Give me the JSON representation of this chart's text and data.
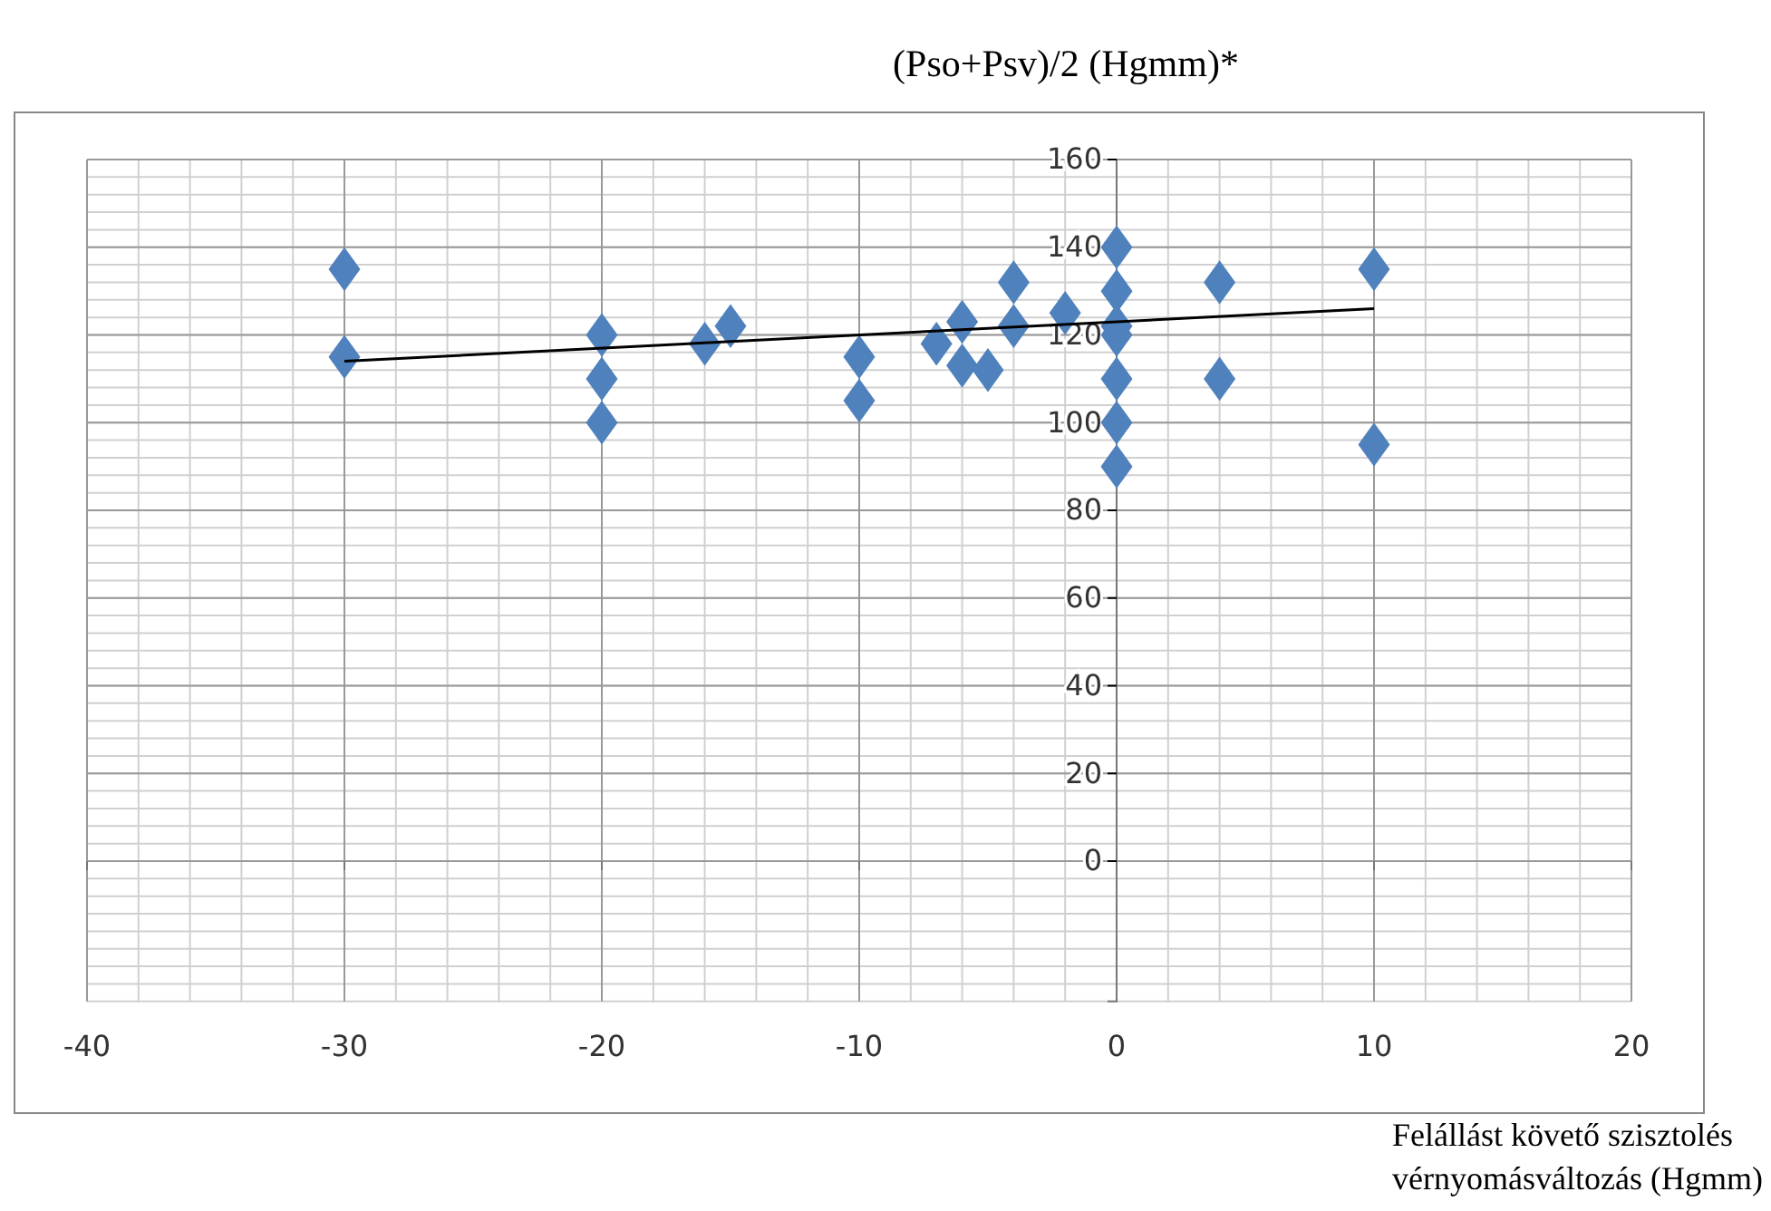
{
  "chart_data": {
    "type": "scatter",
    "ylabel": "(Pso+Psv)/2 (Hgmm)*",
    "xlabel": "Felállást követő szisztolés vérnyomásváltozás (Hgmm)",
    "xlim": [
      -40,
      20
    ],
    "ylim": [
      -32,
      160
    ],
    "xticks": [
      -40,
      -30,
      -20,
      -10,
      0,
      10,
      20
    ],
    "yticks": [
      0,
      20,
      40,
      60,
      80,
      100,
      120,
      140,
      160
    ],
    "grid": true,
    "marker": "diamond",
    "series": [
      {
        "color": "#4f81bd",
        "x": [
          -30,
          -30,
          -20,
          -20,
          -20,
          -16,
          -15,
          -10,
          -10,
          -7,
          -6,
          -6,
          -5,
          -4,
          -4,
          -2,
          0,
          0,
          0,
          0,
          0,
          0,
          0,
          4,
          4,
          10,
          10
        ],
        "values": [
          135,
          115,
          120,
          110,
          100,
          118,
          122,
          115,
          105,
          118,
          123,
          113,
          112,
          132,
          122,
          125,
          140,
          130,
          122,
          120,
          110,
          100,
          90,
          132,
          110,
          135,
          95
        ]
      },
      {
        "type": "line",
        "marker": "none",
        "color": "#000000",
        "x": [
          -30,
          10
        ],
        "values": [
          114,
          126
        ]
      }
    ]
  }
}
